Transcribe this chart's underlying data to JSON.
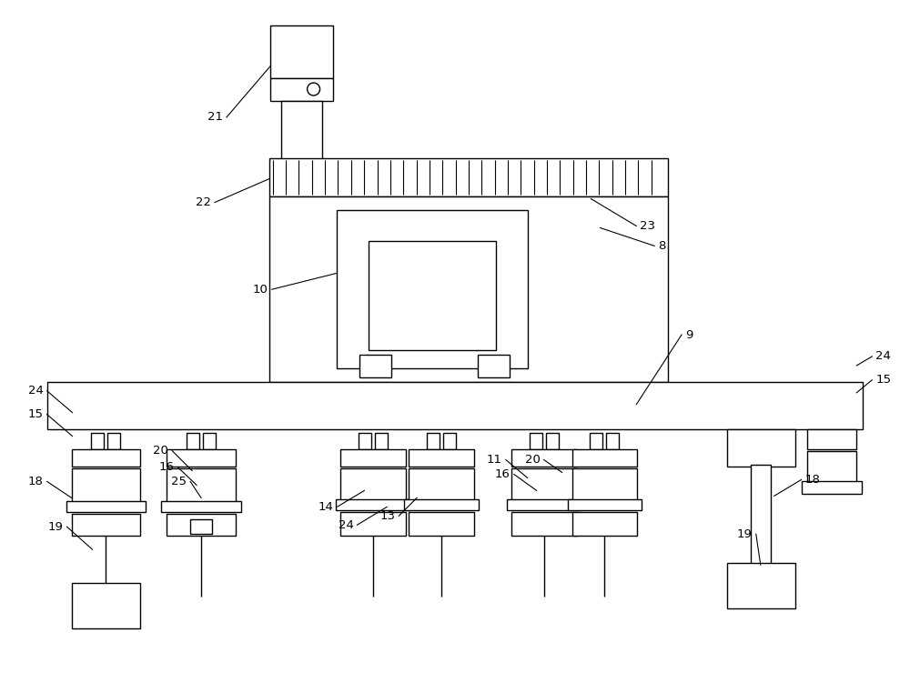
{
  "bg_color": "#ffffff",
  "lc": "#000000",
  "lw": 1.0,
  "fig_w": 10.0,
  "fig_h": 7.51
}
